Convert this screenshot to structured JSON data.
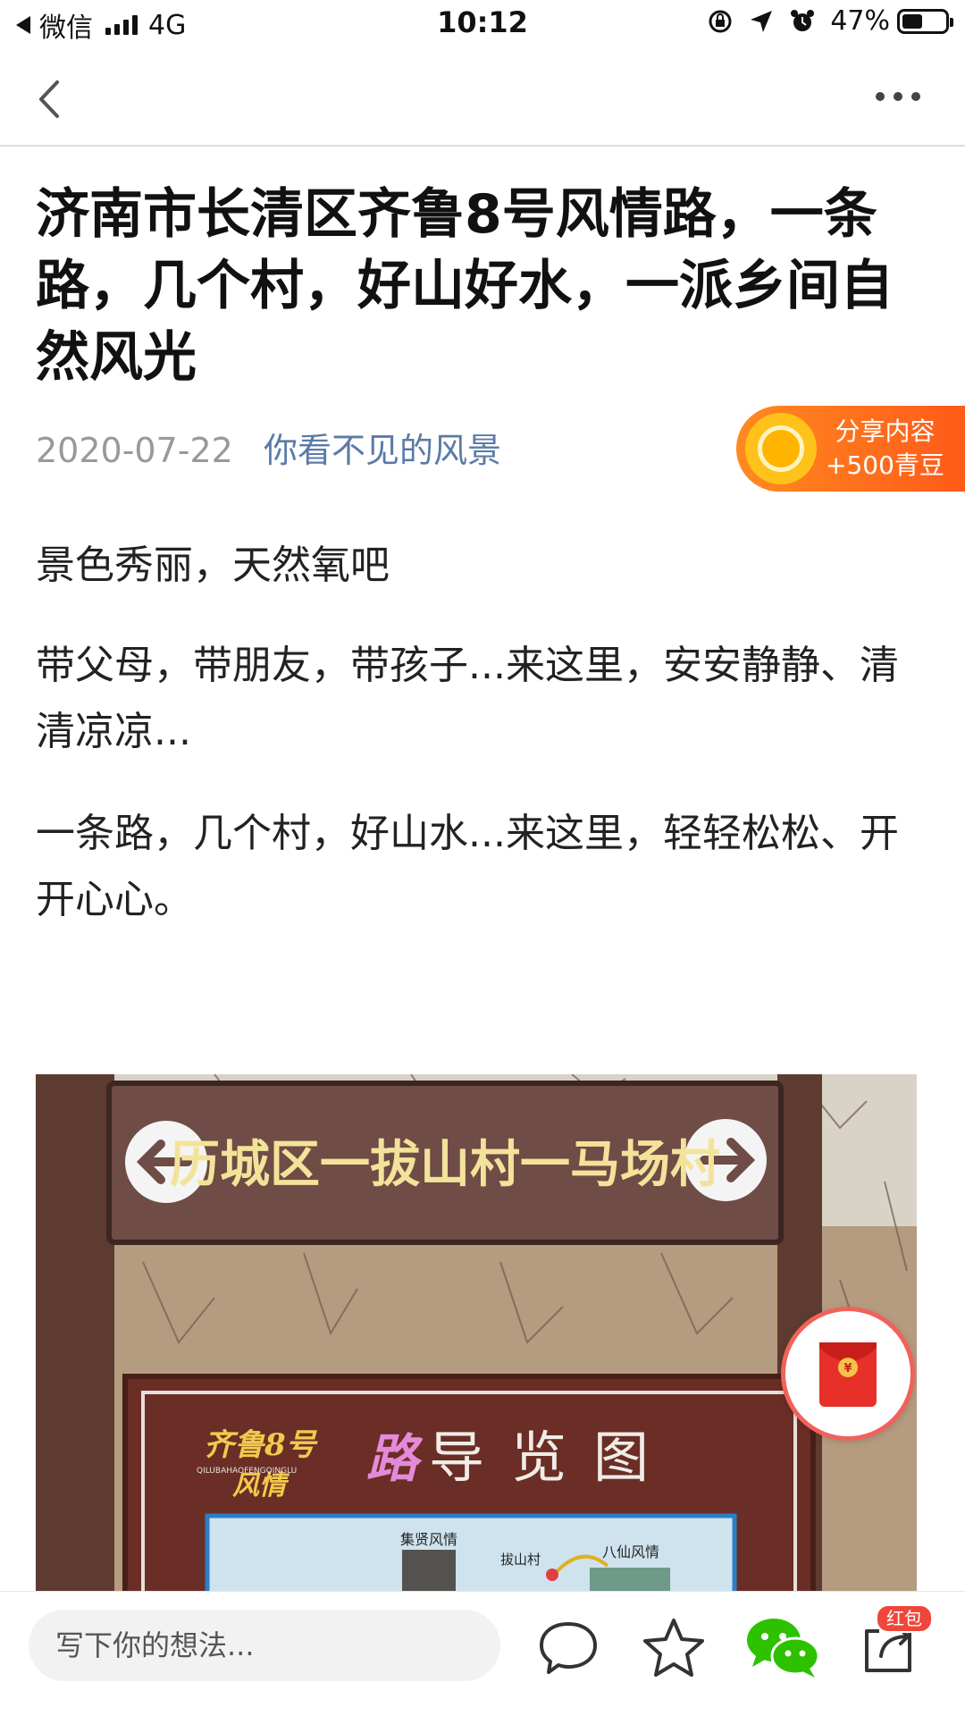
{
  "status_bar": {
    "app_name": "微信",
    "network": "4G",
    "time": "10:12",
    "battery": "47%"
  },
  "article": {
    "title": "济南市长清区齐鲁8号风情路，一条路，几个村，好山好水，一派乡间自然风光",
    "date": "2020-07-22",
    "author": "你看不见的风景",
    "paragraphs": [
      "景色秀丽，天然氧吧",
      "带父母，带朋友，带孩子...来这里，安安静静、清清凉凉...",
      "一条路，几个村，好山水...来这里，轻轻松松、开开心心。"
    ]
  },
  "share_badge": {
    "line1": "分享内容",
    "line2": "+500青豆"
  },
  "photo": {
    "sign_top": "历城区一拔山村一马场村",
    "board_title_brand": "齐鲁8号",
    "board_title_sub": "风情",
    "board_title_road": "路",
    "board_title_main": "导览图",
    "board_pinyin": "QILUBAHAOFENGQINGLU",
    "map_label_1": "集贤风情",
    "map_label_2": "拔山村",
    "map_label_3": "八仙风情"
  },
  "bottom_bar": {
    "comment_placeholder": "写下你的想法...",
    "hongbao_badge": "红包"
  },
  "colors": {
    "accent_orange": "#ff6a1a",
    "author_blue": "#5b7ba7",
    "wechat_green": "#2dc100",
    "badge_red": "#f0463a"
  }
}
